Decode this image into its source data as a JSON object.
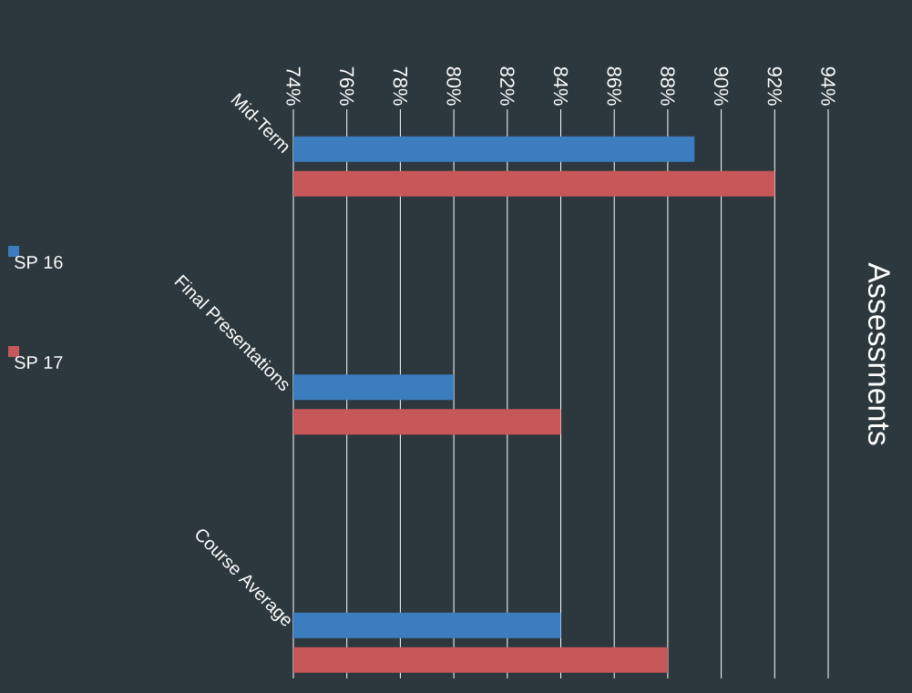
{
  "chart_data": {
    "type": "bar",
    "orientation": "horizontal",
    "title": "Assessments",
    "categories": [
      "Mid-Term",
      "Final Presentations",
      "Course Average"
    ],
    "series": [
      {
        "name": "SP 16",
        "color": "#3b7dbf",
        "values": [
          89,
          80,
          84
        ]
      },
      {
        "name": "SP 17",
        "color": "#c8575a",
        "values": [
          92,
          84,
          88
        ]
      }
    ],
    "xlim": [
      74,
      94
    ],
    "xticks": [
      {
        "value": 74,
        "label": "74%"
      },
      {
        "value": 76,
        "label": "76%"
      },
      {
        "value": 78,
        "label": "78%"
      },
      {
        "value": 80,
        "label": "80%"
      },
      {
        "value": 82,
        "label": "82%"
      },
      {
        "value": 84,
        "label": "84%"
      },
      {
        "value": 86,
        "label": "86%"
      },
      {
        "value": 88,
        "label": "88%"
      },
      {
        "value": 90,
        "label": "90%"
      },
      {
        "value": 92,
        "label": "92%"
      },
      {
        "value": 94,
        "label": "94%"
      }
    ],
    "grid": "x",
    "legend": "left"
  }
}
